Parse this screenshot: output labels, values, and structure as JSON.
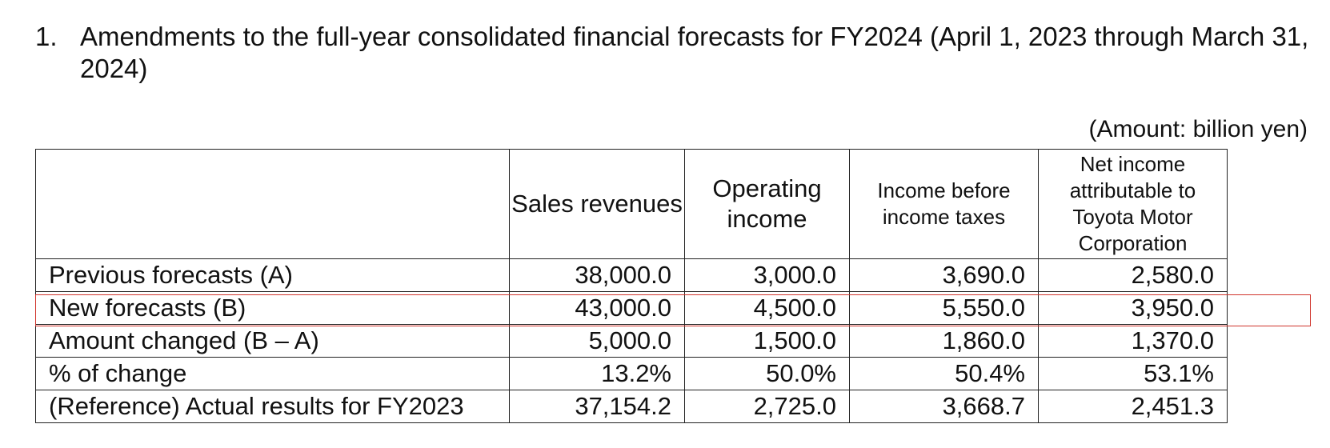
{
  "heading": {
    "number": "1.",
    "text": "Amendments to the full-year consolidated financial forecasts for FY2024 (April 1, 2023 through March 31, 2024)"
  },
  "unit_note": "(Amount: billion yen)",
  "table": {
    "columns": [
      "",
      "Sales revenues",
      "Operating income",
      "Income before income taxes",
      "Net income attributable to Toyota Motor Corporation"
    ],
    "rows": [
      {
        "label": "Previous forecasts (A)",
        "values": [
          "38,000.0",
          "3,000.0",
          "3,690.0",
          "2,580.0"
        ]
      },
      {
        "label": "New forecasts (B)",
        "values": [
          "43,000.0",
          "4,500.0",
          "5,550.0",
          "3,950.0"
        ]
      },
      {
        "label": "Amount changed (B – A)",
        "values": [
          "5,000.0",
          "1,500.0",
          "1,860.0",
          "1,370.0"
        ]
      },
      {
        "label": "% of change",
        "values": [
          "13.2%",
          "50.0%",
          "50.4%",
          "53.1%"
        ]
      },
      {
        "label": "(Reference) Actual results for FY2023",
        "values": [
          "37,154.2",
          "2,725.0",
          "3,668.7",
          "2,451.3"
        ]
      }
    ]
  },
  "highlight": {
    "row": "New forecasts (B)",
    "color": "#d0342c"
  }
}
